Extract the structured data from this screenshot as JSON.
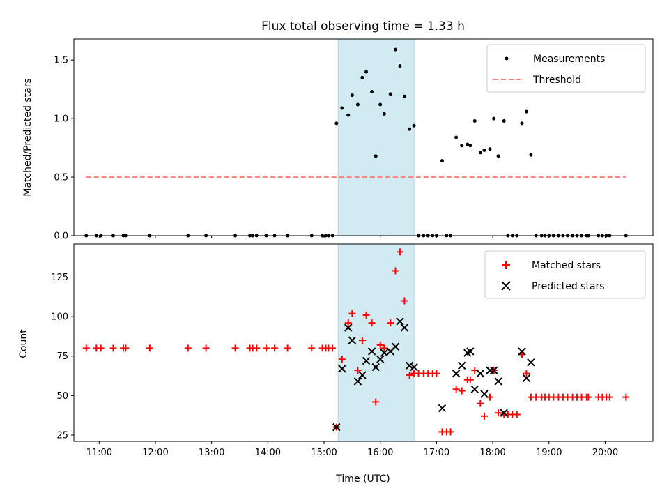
{
  "chart_data": [
    {
      "type": "scatter",
      "title": "Flux total observing time = 1.33 h",
      "xlabel": "",
      "ylabel": "Matched/Predicted stars",
      "xlim": [
        10.55,
        20.85
      ],
      "ylim": [
        0,
        1.68
      ],
      "yticks": [
        0.0,
        0.5,
        1.0,
        1.5
      ],
      "ytick_labels": [
        "0.0",
        "0.5",
        "1.0",
        "1.5"
      ],
      "highlight_band": {
        "x0": 15.25,
        "x1": 16.6,
        "color": "#add8e6"
      },
      "legend": {
        "position": "top-right",
        "entries": [
          "Measurements",
          "Threshold"
        ]
      },
      "series": [
        {
          "name": "Measurements",
          "color": "#000000",
          "marker": "dot",
          "points": [
            [
              10.77,
              0
            ],
            [
              10.95,
              0
            ],
            [
              11.03,
              0
            ],
            [
              11.25,
              0
            ],
            [
              11.43,
              0
            ],
            [
              11.47,
              0
            ],
            [
              11.9,
              0
            ],
            [
              12.58,
              0
            ],
            [
              12.9,
              0
            ],
            [
              13.42,
              0
            ],
            [
              13.68,
              0
            ],
            [
              13.73,
              0
            ],
            [
              13.8,
              0
            ],
            [
              13.97,
              0
            ],
            [
              14.12,
              0
            ],
            [
              14.35,
              0
            ],
            [
              14.78,
              0
            ],
            [
              14.97,
              0
            ],
            [
              15.03,
              0
            ],
            [
              15.08,
              0
            ],
            [
              15.15,
              0
            ],
            [
              15.22,
              0.96
            ],
            [
              15.32,
              1.09
            ],
            [
              15.43,
              1.03
            ],
            [
              15.5,
              1.2
            ],
            [
              15.6,
              1.12
            ],
            [
              15.68,
              1.35
            ],
            [
              15.75,
              1.4
            ],
            [
              15.85,
              1.23
            ],
            [
              15.92,
              0.68
            ],
            [
              16.0,
              1.12
            ],
            [
              16.07,
              1.04
            ],
            [
              16.18,
              1.21
            ],
            [
              16.27,
              1.59
            ],
            [
              16.35,
              1.45
            ],
            [
              16.43,
              1.19
            ],
            [
              16.52,
              0.91
            ],
            [
              16.6,
              0.94
            ],
            [
              16.68,
              0
            ],
            [
              16.77,
              0
            ],
            [
              16.85,
              0
            ],
            [
              16.93,
              0
            ],
            [
              17.0,
              0
            ],
            [
              17.18,
              0
            ],
            [
              17.25,
              0
            ],
            [
              17.1,
              0.64
            ],
            [
              17.35,
              0.84
            ],
            [
              17.45,
              0.77
            ],
            [
              17.55,
              0.78
            ],
            [
              17.6,
              0.77
            ],
            [
              17.68,
              0.98
            ],
            [
              17.78,
              0.71
            ],
            [
              17.85,
              0.73
            ],
            [
              17.95,
              0.74
            ],
            [
              18.02,
              1.0
            ],
            [
              18.1,
              0.68
            ],
            [
              18.2,
              0.98
            ],
            [
              18.52,
              0.96
            ],
            [
              18.6,
              1.06
            ],
            [
              18.68,
              0.69
            ],
            [
              18.27,
              0
            ],
            [
              18.35,
              0
            ],
            [
              18.43,
              0
            ],
            [
              18.77,
              0
            ],
            [
              18.87,
              0
            ],
            [
              18.93,
              0
            ],
            [
              19.0,
              0
            ],
            [
              19.08,
              0
            ],
            [
              19.17,
              0
            ],
            [
              19.25,
              0
            ],
            [
              19.33,
              0
            ],
            [
              19.42,
              0
            ],
            [
              19.5,
              0
            ],
            [
              19.58,
              0
            ],
            [
              19.67,
              0
            ],
            [
              19.7,
              0
            ],
            [
              19.88,
              0
            ],
            [
              19.95,
              0
            ],
            [
              20.02,
              0
            ],
            [
              20.08,
              0
            ],
            [
              20.37,
              0
            ]
          ]
        },
        {
          "name": "Threshold",
          "color": "#ff7f7f",
          "style": "dashed",
          "points": [
            [
              10.77,
              0.5
            ],
            [
              20.37,
              0.5
            ]
          ]
        }
      ]
    },
    {
      "type": "scatter",
      "title": "",
      "xlabel": "Time (UTC)",
      "ylabel": "Count",
      "xlim": [
        10.55,
        20.85
      ],
      "ylim": [
        21,
        146
      ],
      "yticks": [
        25,
        50,
        75,
        100,
        125
      ],
      "ytick_labels": [
        "25",
        "50",
        "75",
        "100",
        "125"
      ],
      "xticks": [
        11,
        12,
        13,
        14,
        15,
        16,
        17,
        18,
        19,
        20
      ],
      "xtick_labels": [
        "11:00",
        "12:00",
        "13:00",
        "14:00",
        "15:00",
        "16:00",
        "17:00",
        "18:00",
        "19:00",
        "20:00"
      ],
      "highlight_band": {
        "x0": 15.25,
        "x1": 16.6,
        "color": "#add8e6"
      },
      "legend": {
        "position": "top-right",
        "entries": [
          "Matched stars",
          "Predicted stars"
        ]
      },
      "series": [
        {
          "name": "Matched stars",
          "color": "#ff0000",
          "marker": "plus",
          "points": [
            [
              10.77,
              80
            ],
            [
              10.95,
              80
            ],
            [
              11.03,
              80
            ],
            [
              11.25,
              80
            ],
            [
              11.43,
              80
            ],
            [
              11.47,
              80
            ],
            [
              11.9,
              80
            ],
            [
              12.58,
              80
            ],
            [
              12.9,
              80
            ],
            [
              13.42,
              80
            ],
            [
              13.68,
              80
            ],
            [
              13.73,
              80
            ],
            [
              13.8,
              80
            ],
            [
              13.97,
              80
            ],
            [
              14.12,
              80
            ],
            [
              14.35,
              80
            ],
            [
              14.78,
              80
            ],
            [
              14.97,
              80
            ],
            [
              15.03,
              80
            ],
            [
              15.08,
              80
            ],
            [
              15.15,
              80
            ],
            [
              15.22,
              30
            ],
            [
              15.32,
              73
            ],
            [
              15.43,
              96
            ],
            [
              15.5,
              102
            ],
            [
              15.6,
              66
            ],
            [
              15.68,
              85
            ],
            [
              15.75,
              101
            ],
            [
              15.85,
              96
            ],
            [
              15.92,
              46
            ],
            [
              16.0,
              82
            ],
            [
              16.07,
              80
            ],
            [
              16.18,
              96
            ],
            [
              16.27,
              129
            ],
            [
              16.35,
              141
            ],
            [
              16.43,
              110
            ],
            [
              16.52,
              63
            ],
            [
              16.6,
              64
            ],
            [
              16.68,
              64
            ],
            [
              16.77,
              64
            ],
            [
              16.85,
              64
            ],
            [
              16.93,
              64
            ],
            [
              17.0,
              64
            ],
            [
              17.1,
              27
            ],
            [
              17.18,
              27
            ],
            [
              17.25,
              27
            ],
            [
              17.35,
              54
            ],
            [
              17.45,
              53
            ],
            [
              17.55,
              60
            ],
            [
              17.6,
              60
            ],
            [
              17.68,
              66
            ],
            [
              17.78,
              45
            ],
            [
              17.85,
              37
            ],
            [
              17.95,
              49
            ],
            [
              18.02,
              66
            ],
            [
              18.1,
              39
            ],
            [
              18.2,
              38
            ],
            [
              18.27,
              38
            ],
            [
              18.35,
              38
            ],
            [
              18.43,
              38
            ],
            [
              18.52,
              76
            ],
            [
              18.6,
              64
            ],
            [
              18.68,
              49
            ],
            [
              18.77,
              49
            ],
            [
              18.87,
              49
            ],
            [
              18.93,
              49
            ],
            [
              19.0,
              49
            ],
            [
              19.08,
              49
            ],
            [
              19.17,
              49
            ],
            [
              19.25,
              49
            ],
            [
              19.33,
              49
            ],
            [
              19.42,
              49
            ],
            [
              19.5,
              49
            ],
            [
              19.58,
              49
            ],
            [
              19.67,
              49
            ],
            [
              19.7,
              49
            ],
            [
              19.88,
              49
            ],
            [
              19.95,
              49
            ],
            [
              20.02,
              49
            ],
            [
              20.08,
              49
            ],
            [
              20.37,
              49
            ]
          ]
        },
        {
          "name": "Predicted stars",
          "color": "#000000",
          "marker": "x",
          "points": [
            [
              15.22,
              30
            ],
            [
              15.32,
              67
            ],
            [
              15.43,
              93
            ],
            [
              15.5,
              85
            ],
            [
              15.6,
              59
            ],
            [
              15.68,
              63
            ],
            [
              15.75,
              72
            ],
            [
              15.85,
              78
            ],
            [
              15.92,
              68
            ],
            [
              16.0,
              73
            ],
            [
              16.07,
              77
            ],
            [
              16.18,
              78
            ],
            [
              16.27,
              81
            ],
            [
              16.35,
              97
            ],
            [
              16.43,
              93
            ],
            [
              16.52,
              69
            ],
            [
              16.6,
              68
            ],
            [
              17.1,
              42
            ],
            [
              17.35,
              64
            ],
            [
              17.45,
              69
            ],
            [
              17.55,
              77
            ],
            [
              17.6,
              78
            ],
            [
              17.68,
              54
            ],
            [
              17.78,
              64
            ],
            [
              17.85,
              51
            ],
            [
              17.95,
              66
            ],
            [
              18.02,
              66
            ],
            [
              18.1,
              59
            ],
            [
              18.2,
              39
            ],
            [
              18.52,
              78
            ],
            [
              18.6,
              61
            ],
            [
              18.68,
              71
            ]
          ]
        }
      ]
    }
  ]
}
